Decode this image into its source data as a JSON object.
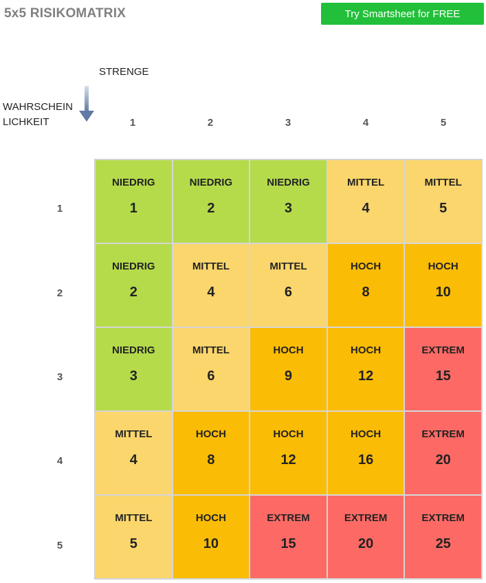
{
  "title": "5x5 RISIKOMATRIX",
  "cta_label": "Try Smartsheet for FREE",
  "axis": {
    "severity_label": "STRENGE",
    "likelihood_label": "WAHRSCHEINLICHKEIT",
    "severity_values": [
      "1",
      "2",
      "3",
      "4",
      "5"
    ],
    "likelihood_values": [
      "1",
      "2",
      "3",
      "4",
      "5"
    ]
  },
  "colors": {
    "niedrig": "#b5db4b",
    "mittel": "#fbd66c",
    "hoch": "#fbbc05",
    "extrem": "#fd6a65"
  },
  "matrix": {
    "rows": [
      [
        {
          "level": "NIEDRIG",
          "value": "1"
        },
        {
          "level": "NIEDRIG",
          "value": "2"
        },
        {
          "level": "NIEDRIG",
          "value": "3"
        },
        {
          "level": "MITTEL",
          "value": "4"
        },
        {
          "level": "MITTEL",
          "value": "5"
        }
      ],
      [
        {
          "level": "NIEDRIG",
          "value": "2"
        },
        {
          "level": "MITTEL",
          "value": "4"
        },
        {
          "level": "MITTEL",
          "value": "6"
        },
        {
          "level": "HOCH",
          "value": "8"
        },
        {
          "level": "HOCH",
          "value": "10"
        }
      ],
      [
        {
          "level": "NIEDRIG",
          "value": "3"
        },
        {
          "level": "MITTEL",
          "value": "6"
        },
        {
          "level": "HOCH",
          "value": "9"
        },
        {
          "level": "HOCH",
          "value": "12"
        },
        {
          "level": "EXTREM",
          "value": "15"
        }
      ],
      [
        {
          "level": "MITTEL",
          "value": "4"
        },
        {
          "level": "HOCH",
          "value": "8"
        },
        {
          "level": "HOCH",
          "value": "12"
        },
        {
          "level": "HOCH",
          "value": "16"
        },
        {
          "level": "EXTREM",
          "value": "20"
        }
      ],
      [
        {
          "level": "MITTEL",
          "value": "5"
        },
        {
          "level": "HOCH",
          "value": "10"
        },
        {
          "level": "EXTREM",
          "value": "15"
        },
        {
          "level": "EXTREM",
          "value": "20"
        },
        {
          "level": "EXTREM",
          "value": "25"
        }
      ]
    ]
  }
}
